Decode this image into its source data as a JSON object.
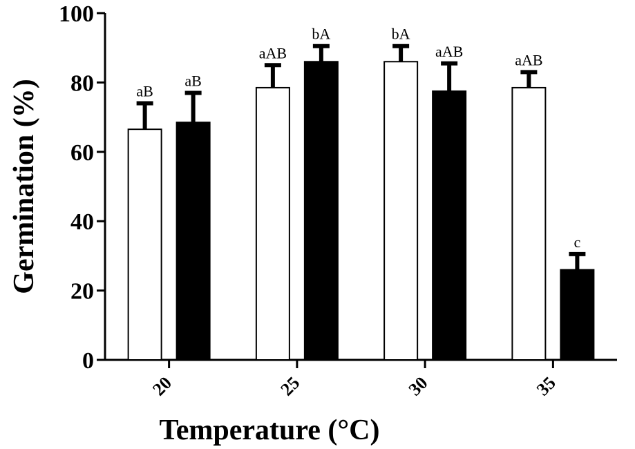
{
  "chart_data": {
    "type": "bar",
    "title": "",
    "xlabel": "Temperature (°C)",
    "ylabel": "Germination  (%)",
    "ylim": [
      0,
      100
    ],
    "yticks": [
      0,
      20,
      40,
      60,
      80,
      100
    ],
    "categories": [
      "20",
      "25",
      "30",
      "35"
    ],
    "series": [
      {
        "name": "open bars",
        "fill": "#ffffff",
        "values": [
          66.5,
          78.5,
          86,
          78.5
        ],
        "errors": [
          7.5,
          6.5,
          4.5,
          4.5
        ],
        "labels": [
          "aB",
          "aAB",
          "bA",
          "aAB"
        ]
      },
      {
        "name": "filled bars",
        "fill": "#000000",
        "values": [
          68.5,
          86,
          77.5,
          26
        ],
        "errors": [
          8.5,
          4.5,
          8,
          4.5
        ],
        "labels": [
          "aB",
          "bA",
          "aAB",
          "c"
        ]
      }
    ]
  }
}
